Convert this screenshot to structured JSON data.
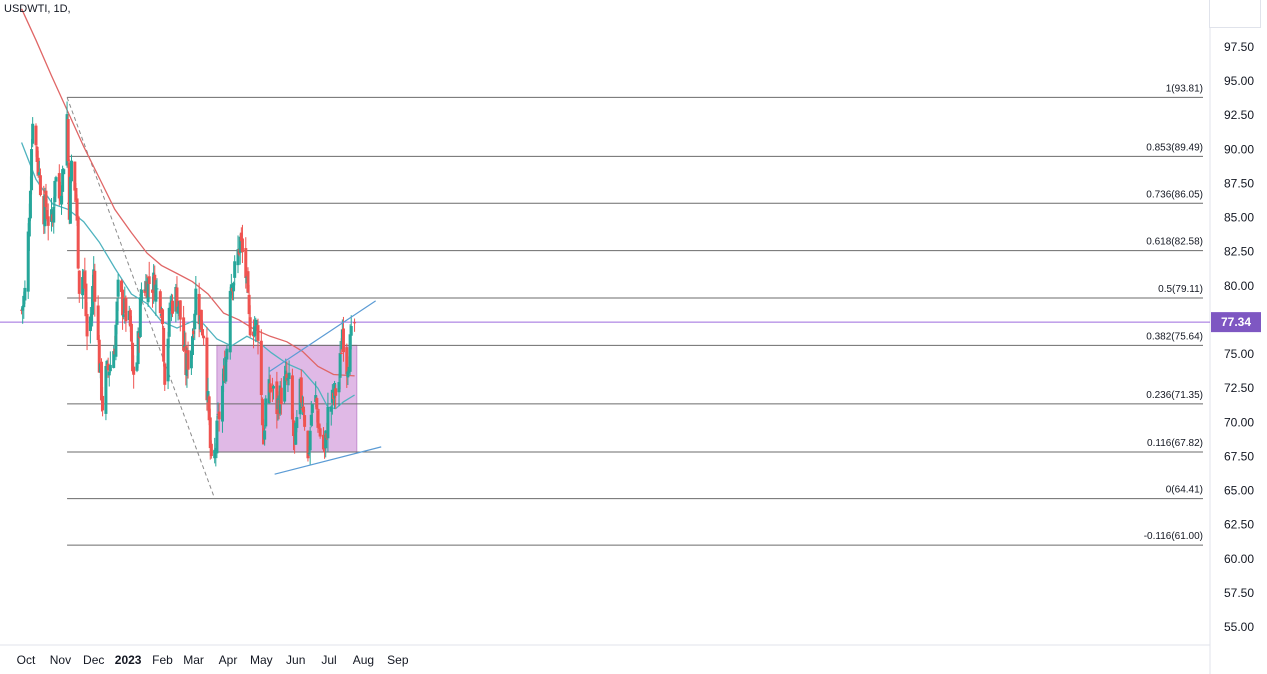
{
  "header": {
    "symbol": "USDWTI, 1D,"
  },
  "colors": {
    "up": "#26a69a",
    "down": "#ef5350",
    "ma_fast": "#4fb3bf",
    "ma_slow": "#e06666",
    "trend": "#5b9bd5",
    "box": "#d8a8e0",
    "price_tag": "#7e57c2",
    "fib": "#555555"
  },
  "chart_data": {
    "type": "candlestick",
    "symbol": "USDWTI",
    "interval": "1D",
    "last_price": "77.34",
    "y_ticks": [
      "97.50",
      "95.00",
      "92.50",
      "90.00",
      "87.50",
      "85.00",
      "82.50",
      "80.00",
      "77.50",
      "75.00",
      "72.50",
      "70.00",
      "67.50",
      "65.00",
      "62.50",
      "60.00",
      "57.50",
      "55.00"
    ],
    "ylim": [
      53.5,
      100.5
    ],
    "x_ticks": [
      "Oct",
      "Nov",
      "Dec",
      "2023",
      "Feb",
      "Mar",
      "Apr",
      "May",
      "Jun",
      "Jul",
      "Aug",
      "Sep"
    ],
    "fib_levels": [
      {
        "label": "1(93.81)",
        "price": 93.81
      },
      {
        "label": "0.853(89.49)",
        "price": 89.49
      },
      {
        "label": "0.736(86.05)",
        "price": 86.05
      },
      {
        "label": "0.618(82.58)",
        "price": 82.58
      },
      {
        "label": "0.5(79.11)",
        "price": 79.11
      },
      {
        "label": "0.382(75.64)",
        "price": 75.64
      },
      {
        "label": "0.236(71.35)",
        "price": 71.35
      },
      {
        "label": "0.116(67.82)",
        "price": 67.82
      },
      {
        "label": "0(64.41)",
        "price": 64.41
      },
      {
        "label": "-0.116(61.00)",
        "price": 61.0
      }
    ],
    "horizontal_line_price": 77.34,
    "fib_start": {
      "date": "2022-11-07",
      "price": 93.81
    },
    "fib_end": {
      "date": "2023-03-20",
      "price": 64.41
    },
    "range_box": {
      "start": "2023-03-22",
      "end": "2023-07-26",
      "high": 75.64,
      "low": 67.82
    },
    "trendlines": [
      {
        "from": {
          "date": "2023-05-08",
          "price": 73.7
        },
        "to": {
          "date": "2023-08-12",
          "price": 78.9
        }
      },
      {
        "from": {
          "date": "2023-05-13",
          "price": 66.2
        },
        "to": {
          "date": "2023-08-17",
          "price": 68.2
        }
      }
    ],
    "ma_fast_points": [
      [
        "2022-09-27",
        90.5
      ],
      [
        "2022-10-10",
        87.8
      ],
      [
        "2022-10-25",
        86.0
      ],
      [
        "2022-11-08",
        85.6
      ],
      [
        "2022-11-22",
        84.7
      ],
      [
        "2022-12-06",
        83.2
      ],
      [
        "2022-12-20",
        81.3
      ],
      [
        "2023-01-04",
        79.4
      ],
      [
        "2023-01-18",
        78.7
      ],
      [
        "2023-01-31",
        77.4
      ],
      [
        "2023-02-14",
        76.9
      ],
      [
        "2023-02-28",
        77.4
      ],
      [
        "2023-03-10",
        77.2
      ],
      [
        "2023-03-22",
        76.1
      ],
      [
        "2023-04-04",
        75.6
      ],
      [
        "2023-04-18",
        76.3
      ],
      [
        "2023-04-28",
        75.9
      ],
      [
        "2023-05-10",
        75.1
      ],
      [
        "2023-05-24",
        74.3
      ],
      [
        "2023-06-07",
        73.8
      ],
      [
        "2023-06-21",
        72.5
      ],
      [
        "2023-06-30",
        71.1
      ],
      [
        "2023-07-07",
        71.0
      ],
      [
        "2023-07-14",
        71.5
      ],
      [
        "2023-07-24",
        72.0
      ]
    ],
    "ma_slow_points": [
      [
        "2022-09-27",
        100.3
      ],
      [
        "2022-10-10",
        98.0
      ],
      [
        "2022-10-24",
        95.4
      ],
      [
        "2022-11-08",
        92.7
      ],
      [
        "2022-11-22",
        90.2
      ],
      [
        "2022-12-06",
        87.9
      ],
      [
        "2022-12-20",
        85.6
      ],
      [
        "2023-01-04",
        83.9
      ],
      [
        "2023-01-18",
        82.4
      ],
      [
        "2023-01-31",
        81.5
      ],
      [
        "2023-02-14",
        80.9
      ],
      [
        "2023-02-28",
        80.3
      ],
      [
        "2023-03-14",
        79.4
      ],
      [
        "2023-03-28",
        78.0
      ],
      [
        "2023-04-11",
        77.5
      ],
      [
        "2023-04-25",
        76.8
      ],
      [
        "2023-05-09",
        76.3
      ],
      [
        "2023-05-24",
        75.9
      ],
      [
        "2023-06-07",
        75.2
      ],
      [
        "2023-06-21",
        74.1
      ],
      [
        "2023-07-05",
        73.5
      ],
      [
        "2023-07-24",
        73.4
      ]
    ],
    "candle_anchors": [
      [
        "2022-09-27",
        78.2
      ],
      [
        "2022-09-30",
        79.5
      ],
      [
        "2022-10-03",
        83.6
      ],
      [
        "2022-10-05",
        87.8
      ],
      [
        "2022-10-07",
        92.6
      ],
      [
        "2022-10-11",
        89.4
      ],
      [
        "2022-10-13",
        88.1
      ],
      [
        "2022-10-17",
        85.5
      ],
      [
        "2022-10-19",
        85.9
      ],
      [
        "2022-10-21",
        84.9
      ],
      [
        "2022-10-25",
        84.6
      ],
      [
        "2022-10-27",
        88.2
      ],
      [
        "2022-10-31",
        86.5
      ],
      [
        "2022-11-03",
        88.2
      ],
      [
        "2022-11-07",
        92.5
      ],
      [
        "2022-11-09",
        85.8
      ],
      [
        "2022-11-11",
        88.9
      ],
      [
        "2022-11-15",
        86.4
      ],
      [
        "2022-11-18",
        80.1
      ],
      [
        "2022-11-22",
        81.0
      ],
      [
        "2022-11-25",
        76.3
      ],
      [
        "2022-11-29",
        78.1
      ],
      [
        "2022-12-01",
        81.2
      ],
      [
        "2022-12-06",
        74.3
      ],
      [
        "2022-12-09",
        71.3
      ],
      [
        "2022-12-12",
        73.4
      ],
      [
        "2022-12-16",
        74.3
      ],
      [
        "2022-12-20",
        75.8
      ],
      [
        "2022-12-23",
        79.6
      ],
      [
        "2022-12-28",
        78.4
      ],
      [
        "2023-01-03",
        76.9
      ],
      [
        "2023-01-05",
        73.5
      ],
      [
        "2023-01-09",
        74.5
      ],
      [
        "2023-01-13",
        79.8
      ],
      [
        "2023-01-19",
        80.3
      ],
      [
        "2023-01-24",
        80.2
      ],
      [
        "2023-01-27",
        79.6
      ],
      [
        "2023-01-31",
        78.9
      ],
      [
        "2023-02-03",
        73.6
      ],
      [
        "2023-02-08",
        78.5
      ],
      [
        "2023-02-13",
        79.3
      ],
      [
        "2023-02-16",
        78.4
      ],
      [
        "2023-02-22",
        73.9
      ],
      [
        "2023-02-27",
        75.6
      ],
      [
        "2023-03-03",
        79.5
      ],
      [
        "2023-03-07",
        77.5
      ],
      [
        "2023-03-10",
        76.7
      ],
      [
        "2023-03-14",
        71.3
      ],
      [
        "2023-03-17",
        66.5
      ],
      [
        "2023-03-20",
        67.6
      ],
      [
        "2023-03-23",
        69.9
      ],
      [
        "2023-03-28",
        73.2
      ],
      [
        "2023-03-31",
        75.7
      ],
      [
        "2023-04-03",
        80.4
      ],
      [
        "2023-04-06",
        80.6
      ],
      [
        "2023-04-12",
        83.3
      ],
      [
        "2023-04-17",
        80.8
      ],
      [
        "2023-04-20",
        77.3
      ],
      [
        "2023-04-25",
        77.1
      ],
      [
        "2023-04-28",
        76.8
      ],
      [
        "2023-05-03",
        68.6
      ],
      [
        "2023-05-05",
        71.4
      ],
      [
        "2023-05-10",
        72.6
      ],
      [
        "2023-05-15",
        71.1
      ],
      [
        "2023-05-18",
        71.9
      ],
      [
        "2023-05-23",
        73.0
      ],
      [
        "2023-05-26",
        72.7
      ],
      [
        "2023-05-31",
        68.1
      ],
      [
        "2023-06-05",
        72.2
      ],
      [
        "2023-06-08",
        71.3
      ],
      [
        "2023-06-12",
        67.1
      ],
      [
        "2023-06-15",
        70.6
      ],
      [
        "2023-06-19",
        71.6
      ],
      [
        "2023-06-22",
        69.5
      ],
      [
        "2023-06-27",
        67.7
      ],
      [
        "2023-06-30",
        70.6
      ],
      [
        "2023-07-05",
        71.8
      ],
      [
        "2023-07-10",
        73.0
      ],
      [
        "2023-07-13",
        76.9
      ],
      [
        "2023-07-17",
        74.2
      ],
      [
        "2023-07-20",
        75.6
      ],
      [
        "2023-07-24",
        77.2
      ]
    ]
  }
}
